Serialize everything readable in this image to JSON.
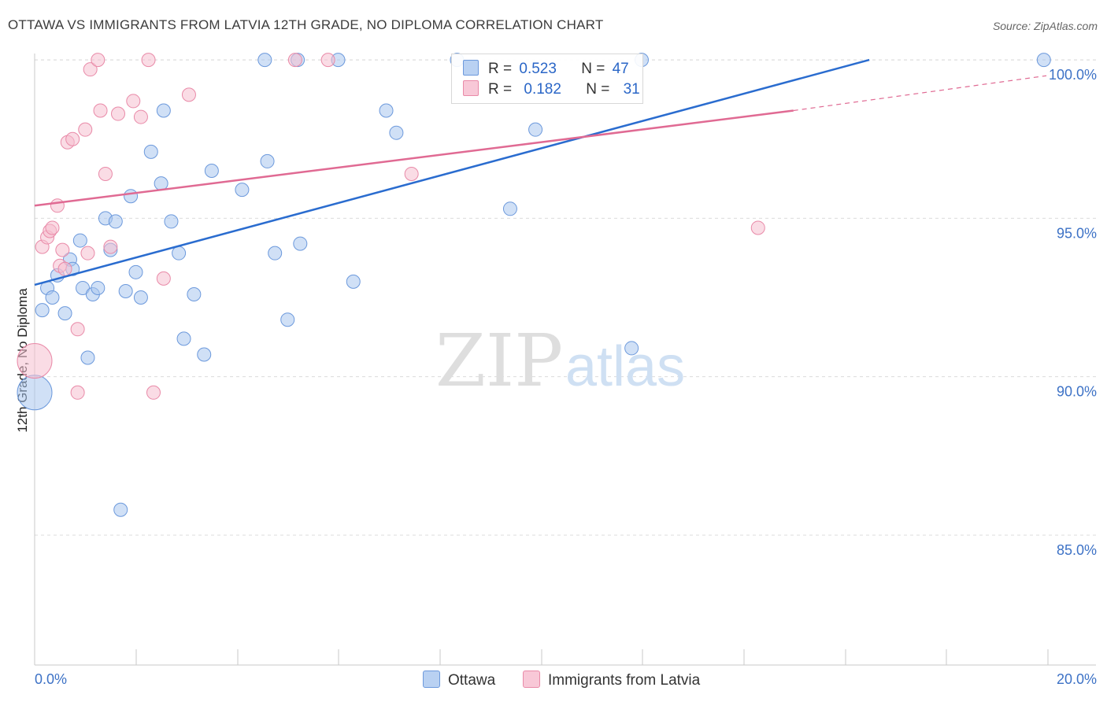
{
  "title": "OTTAWA VS IMMIGRANTS FROM LATVIA 12TH GRADE, NO DIPLOMA CORRELATION CHART",
  "source": "Source: ZipAtlas.com",
  "watermark": {
    "zip": "ZIP",
    "atlas": "atlas"
  },
  "legend_stats": [
    {
      "r_label": "R =",
      "r_value": "0.523",
      "n_label": "N =",
      "n_value": "47"
    },
    {
      "r_label": "R =",
      "r_value": "0.182",
      "n_label": "N =",
      "n_value": "31"
    }
  ],
  "legend_series": [
    "Ottawa",
    "Immigrants from Latvia"
  ],
  "colors": {
    "ottawa_fill": "#a9c6ef",
    "ottawa_stroke": "#6c99dc",
    "ottawa_line": "#2a6ccf",
    "latvia_fill": "#f6bfd0",
    "latvia_stroke": "#e98aa8",
    "latvia_line": "#e06a93",
    "tick_label": "#3d72c6",
    "grid": "#dcdcdc"
  },
  "chart_data": {
    "type": "scatter",
    "xlabel": "",
    "ylabel": "12th Grade, No Diploma",
    "xlim": [
      0,
      20
    ],
    "ylim": [
      80.9,
      100.4
    ],
    "x_tick_labels": [
      "0.0%",
      "20.0%"
    ],
    "y_ticks": [
      85,
      90,
      95,
      100
    ],
    "y_tick_labels": [
      "85.0%",
      "90.0%",
      "95.0%",
      "100.0%"
    ],
    "grid": true,
    "series": [
      {
        "name": "Ottawa",
        "r": 0.523,
        "n": 47,
        "trend": {
          "x": [
            0,
            16.5
          ],
          "y": [
            92.9,
            100.0
          ]
        },
        "points": [
          {
            "x": 0.0,
            "y": 89.5,
            "big": true
          },
          {
            "x": 0.15,
            "y": 92.1
          },
          {
            "x": 0.25,
            "y": 92.8
          },
          {
            "x": 0.35,
            "y": 92.5
          },
          {
            "x": 0.45,
            "y": 93.2
          },
          {
            "x": 0.6,
            "y": 92.0
          },
          {
            "x": 0.7,
            "y": 93.7
          },
          {
            "x": 0.75,
            "y": 93.4
          },
          {
            "x": 0.9,
            "y": 94.3
          },
          {
            "x": 0.95,
            "y": 92.8
          },
          {
            "x": 1.05,
            "y": 90.6
          },
          {
            "x": 1.15,
            "y": 92.6
          },
          {
            "x": 1.25,
            "y": 92.8
          },
          {
            "x": 1.4,
            "y": 95.0
          },
          {
            "x": 1.5,
            "y": 94.0
          },
          {
            "x": 1.6,
            "y": 94.9
          },
          {
            "x": 1.7,
            "y": 85.8
          },
          {
            "x": 1.8,
            "y": 92.7
          },
          {
            "x": 1.9,
            "y": 95.7
          },
          {
            "x": 2.0,
            "y": 93.3
          },
          {
            "x": 2.1,
            "y": 92.5
          },
          {
            "x": 2.3,
            "y": 97.1
          },
          {
            "x": 2.5,
            "y": 96.1
          },
          {
            "x": 2.55,
            "y": 98.4
          },
          {
            "x": 2.7,
            "y": 94.9
          },
          {
            "x": 2.85,
            "y": 93.9
          },
          {
            "x": 2.95,
            "y": 91.2
          },
          {
            "x": 3.15,
            "y": 92.6
          },
          {
            "x": 3.35,
            "y": 90.7
          },
          {
            "x": 3.5,
            "y": 96.5
          },
          {
            "x": 4.1,
            "y": 95.9
          },
          {
            "x": 4.55,
            "y": 100.0
          },
          {
            "x": 4.6,
            "y": 96.8
          },
          {
            "x": 4.75,
            "y": 93.9
          },
          {
            "x": 5.0,
            "y": 91.8
          },
          {
            "x": 5.2,
            "y": 100.0
          },
          {
            "x": 5.25,
            "y": 94.2
          },
          {
            "x": 6.0,
            "y": 100.0
          },
          {
            "x": 6.3,
            "y": 93.0
          },
          {
            "x": 6.95,
            "y": 98.4
          },
          {
            "x": 7.15,
            "y": 97.7
          },
          {
            "x": 8.35,
            "y": 100.0
          },
          {
            "x": 9.4,
            "y": 95.3
          },
          {
            "x": 9.9,
            "y": 97.8
          },
          {
            "x": 11.8,
            "y": 90.9
          },
          {
            "x": 12.0,
            "y": 100.0
          },
          {
            "x": 19.95,
            "y": 100.0
          }
        ]
      },
      {
        "name": "Immigrants from Latvia",
        "r": 0.182,
        "n": 31,
        "trend": {
          "x": [
            0,
            15.0
          ],
          "y": [
            95.4,
            98.4
          ]
        },
        "trend_extension": {
          "x": [
            15.0,
            20.0
          ],
          "y": [
            98.4,
            99.5
          ]
        },
        "points": [
          {
            "x": 0.0,
            "y": 90.5,
            "big": true
          },
          {
            "x": 0.15,
            "y": 94.1
          },
          {
            "x": 0.25,
            "y": 94.4
          },
          {
            "x": 0.3,
            "y": 94.6
          },
          {
            "x": 0.35,
            "y": 94.7
          },
          {
            "x": 0.45,
            "y": 95.4
          },
          {
            "x": 0.5,
            "y": 93.5
          },
          {
            "x": 0.55,
            "y": 94.0
          },
          {
            "x": 0.6,
            "y": 93.4
          },
          {
            "x": 0.65,
            "y": 97.4
          },
          {
            "x": 0.75,
            "y": 97.5
          },
          {
            "x": 0.85,
            "y": 91.5
          },
          {
            "x": 0.85,
            "y": 89.5
          },
          {
            "x": 1.0,
            "y": 97.8
          },
          {
            "x": 1.05,
            "y": 93.9
          },
          {
            "x": 1.1,
            "y": 99.7
          },
          {
            "x": 1.25,
            "y": 100.0
          },
          {
            "x": 1.3,
            "y": 98.4
          },
          {
            "x": 1.4,
            "y": 96.4
          },
          {
            "x": 1.5,
            "y": 94.1
          },
          {
            "x": 1.65,
            "y": 98.3
          },
          {
            "x": 1.95,
            "y": 98.7
          },
          {
            "x": 2.1,
            "y": 98.2
          },
          {
            "x": 2.25,
            "y": 100.0
          },
          {
            "x": 2.35,
            "y": 89.5
          },
          {
            "x": 2.55,
            "y": 93.1
          },
          {
            "x": 3.05,
            "y": 98.9
          },
          {
            "x": 5.15,
            "y": 100.0
          },
          {
            "x": 5.8,
            "y": 100.0
          },
          {
            "x": 7.45,
            "y": 96.4
          },
          {
            "x": 14.3,
            "y": 94.7
          }
        ]
      }
    ]
  }
}
